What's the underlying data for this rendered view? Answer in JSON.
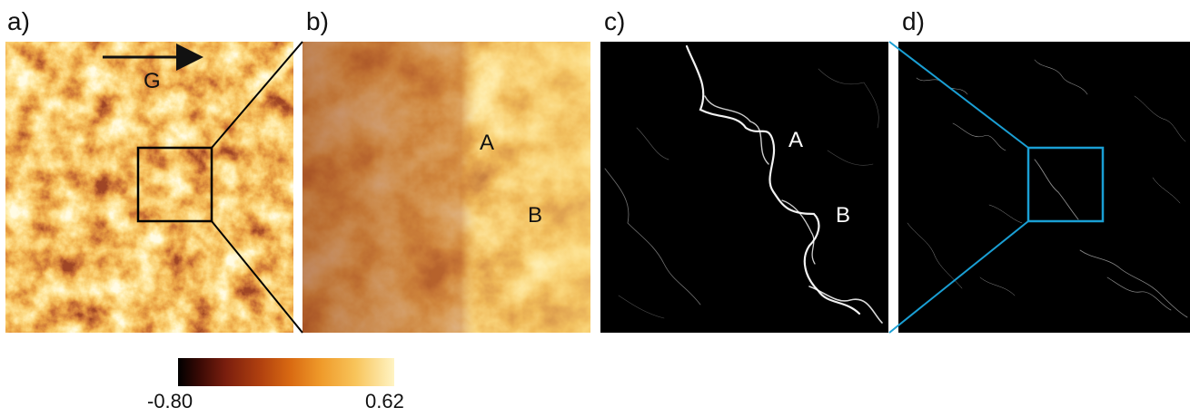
{
  "panels": [
    {
      "id": "a",
      "label": "a)"
    },
    {
      "id": "b",
      "label": "b)"
    },
    {
      "id": "c",
      "label": "c)"
    },
    {
      "id": "d",
      "label": "d)"
    }
  ],
  "annotations": {
    "gravity": "G",
    "point_a_b": "A",
    "point_b_b": "B",
    "point_a_c": "A",
    "point_b_c": "B"
  },
  "colorbar": {
    "min_label": "-0.80",
    "max_label": "0.62",
    "colormap": "afmhot"
  },
  "colors": {
    "zoom_box_a": "#000000",
    "zoom_box_d": "#1a9fd4"
  }
}
